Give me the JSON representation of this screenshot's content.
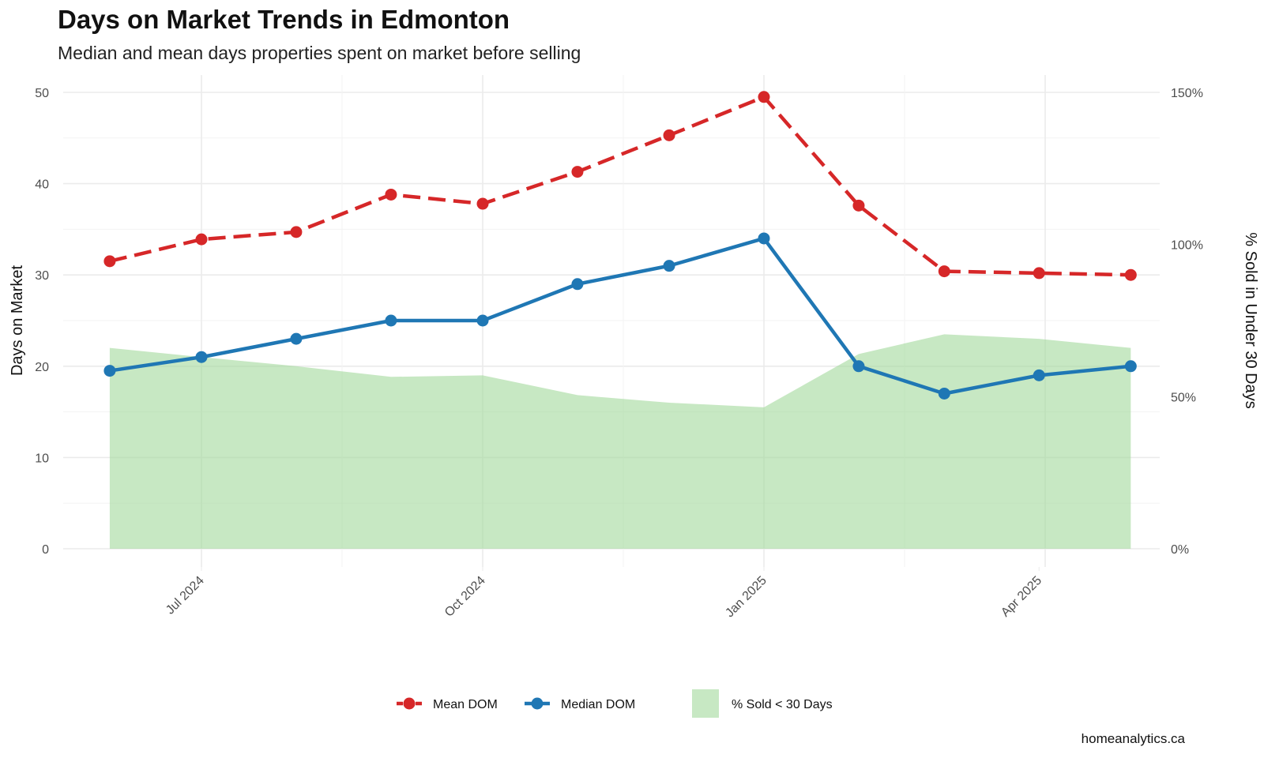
{
  "chart_data": {
    "type": "line",
    "title": "Days on Market Trends in Edmonton",
    "subtitle": "Median and mean days properties spent on market before selling",
    "ylabel": "Days on Market",
    "y2label": "% Sold in Under 30 Days",
    "ylim": [
      0,
      50
    ],
    "y2lim": [
      0,
      150
    ],
    "yticks": [
      0,
      10,
      20,
      30,
      40,
      50
    ],
    "y2ticks": [
      "0%",
      "50%",
      "100%",
      "150%"
    ],
    "x": [
      "2024-06-01",
      "2024-07-01",
      "2024-08-01",
      "2024-09-01",
      "2024-10-01",
      "2024-11-01",
      "2024-12-01",
      "2025-01-01",
      "2025-02-01",
      "2025-03-01",
      "2025-04-01",
      "2025-05-01"
    ],
    "xticks": [
      {
        "date": "2024-07-01",
        "label": "Jul 2024"
      },
      {
        "date": "2024-10-01",
        "label": "Oct 2024"
      },
      {
        "date": "2025-01-01",
        "label": "Jan 2025"
      },
      {
        "date": "2025-04-01",
        "label": "Apr 2025"
      }
    ],
    "grid": true,
    "legend_position": "bottom",
    "series": [
      {
        "name": "Mean DOM",
        "type": "line",
        "style": "dashed",
        "axis": "left",
        "color": "#d62728",
        "values": [
          31.5,
          33.9,
          34.7,
          38.8,
          37.8,
          41.3,
          45.3,
          49.5,
          37.6,
          30.4,
          30.2,
          30.0
        ]
      },
      {
        "name": "Median DOM",
        "type": "line",
        "style": "solid",
        "axis": "left",
        "color": "#1f77b4",
        "values": [
          19.5,
          21.0,
          23.0,
          25.0,
          25.0,
          29.0,
          31.0,
          34.0,
          20.0,
          17.0,
          19.0,
          20.0
        ]
      },
      {
        "name": "% Sold < 30 Days",
        "type": "area",
        "axis": "right",
        "color": "#a1d99b",
        "values": [
          66,
          63,
          60,
          56.5,
          57,
          50.5,
          48,
          46.5,
          64,
          70.5,
          69,
          66
        ]
      }
    ],
    "caption": "homeanalytics.ca"
  }
}
